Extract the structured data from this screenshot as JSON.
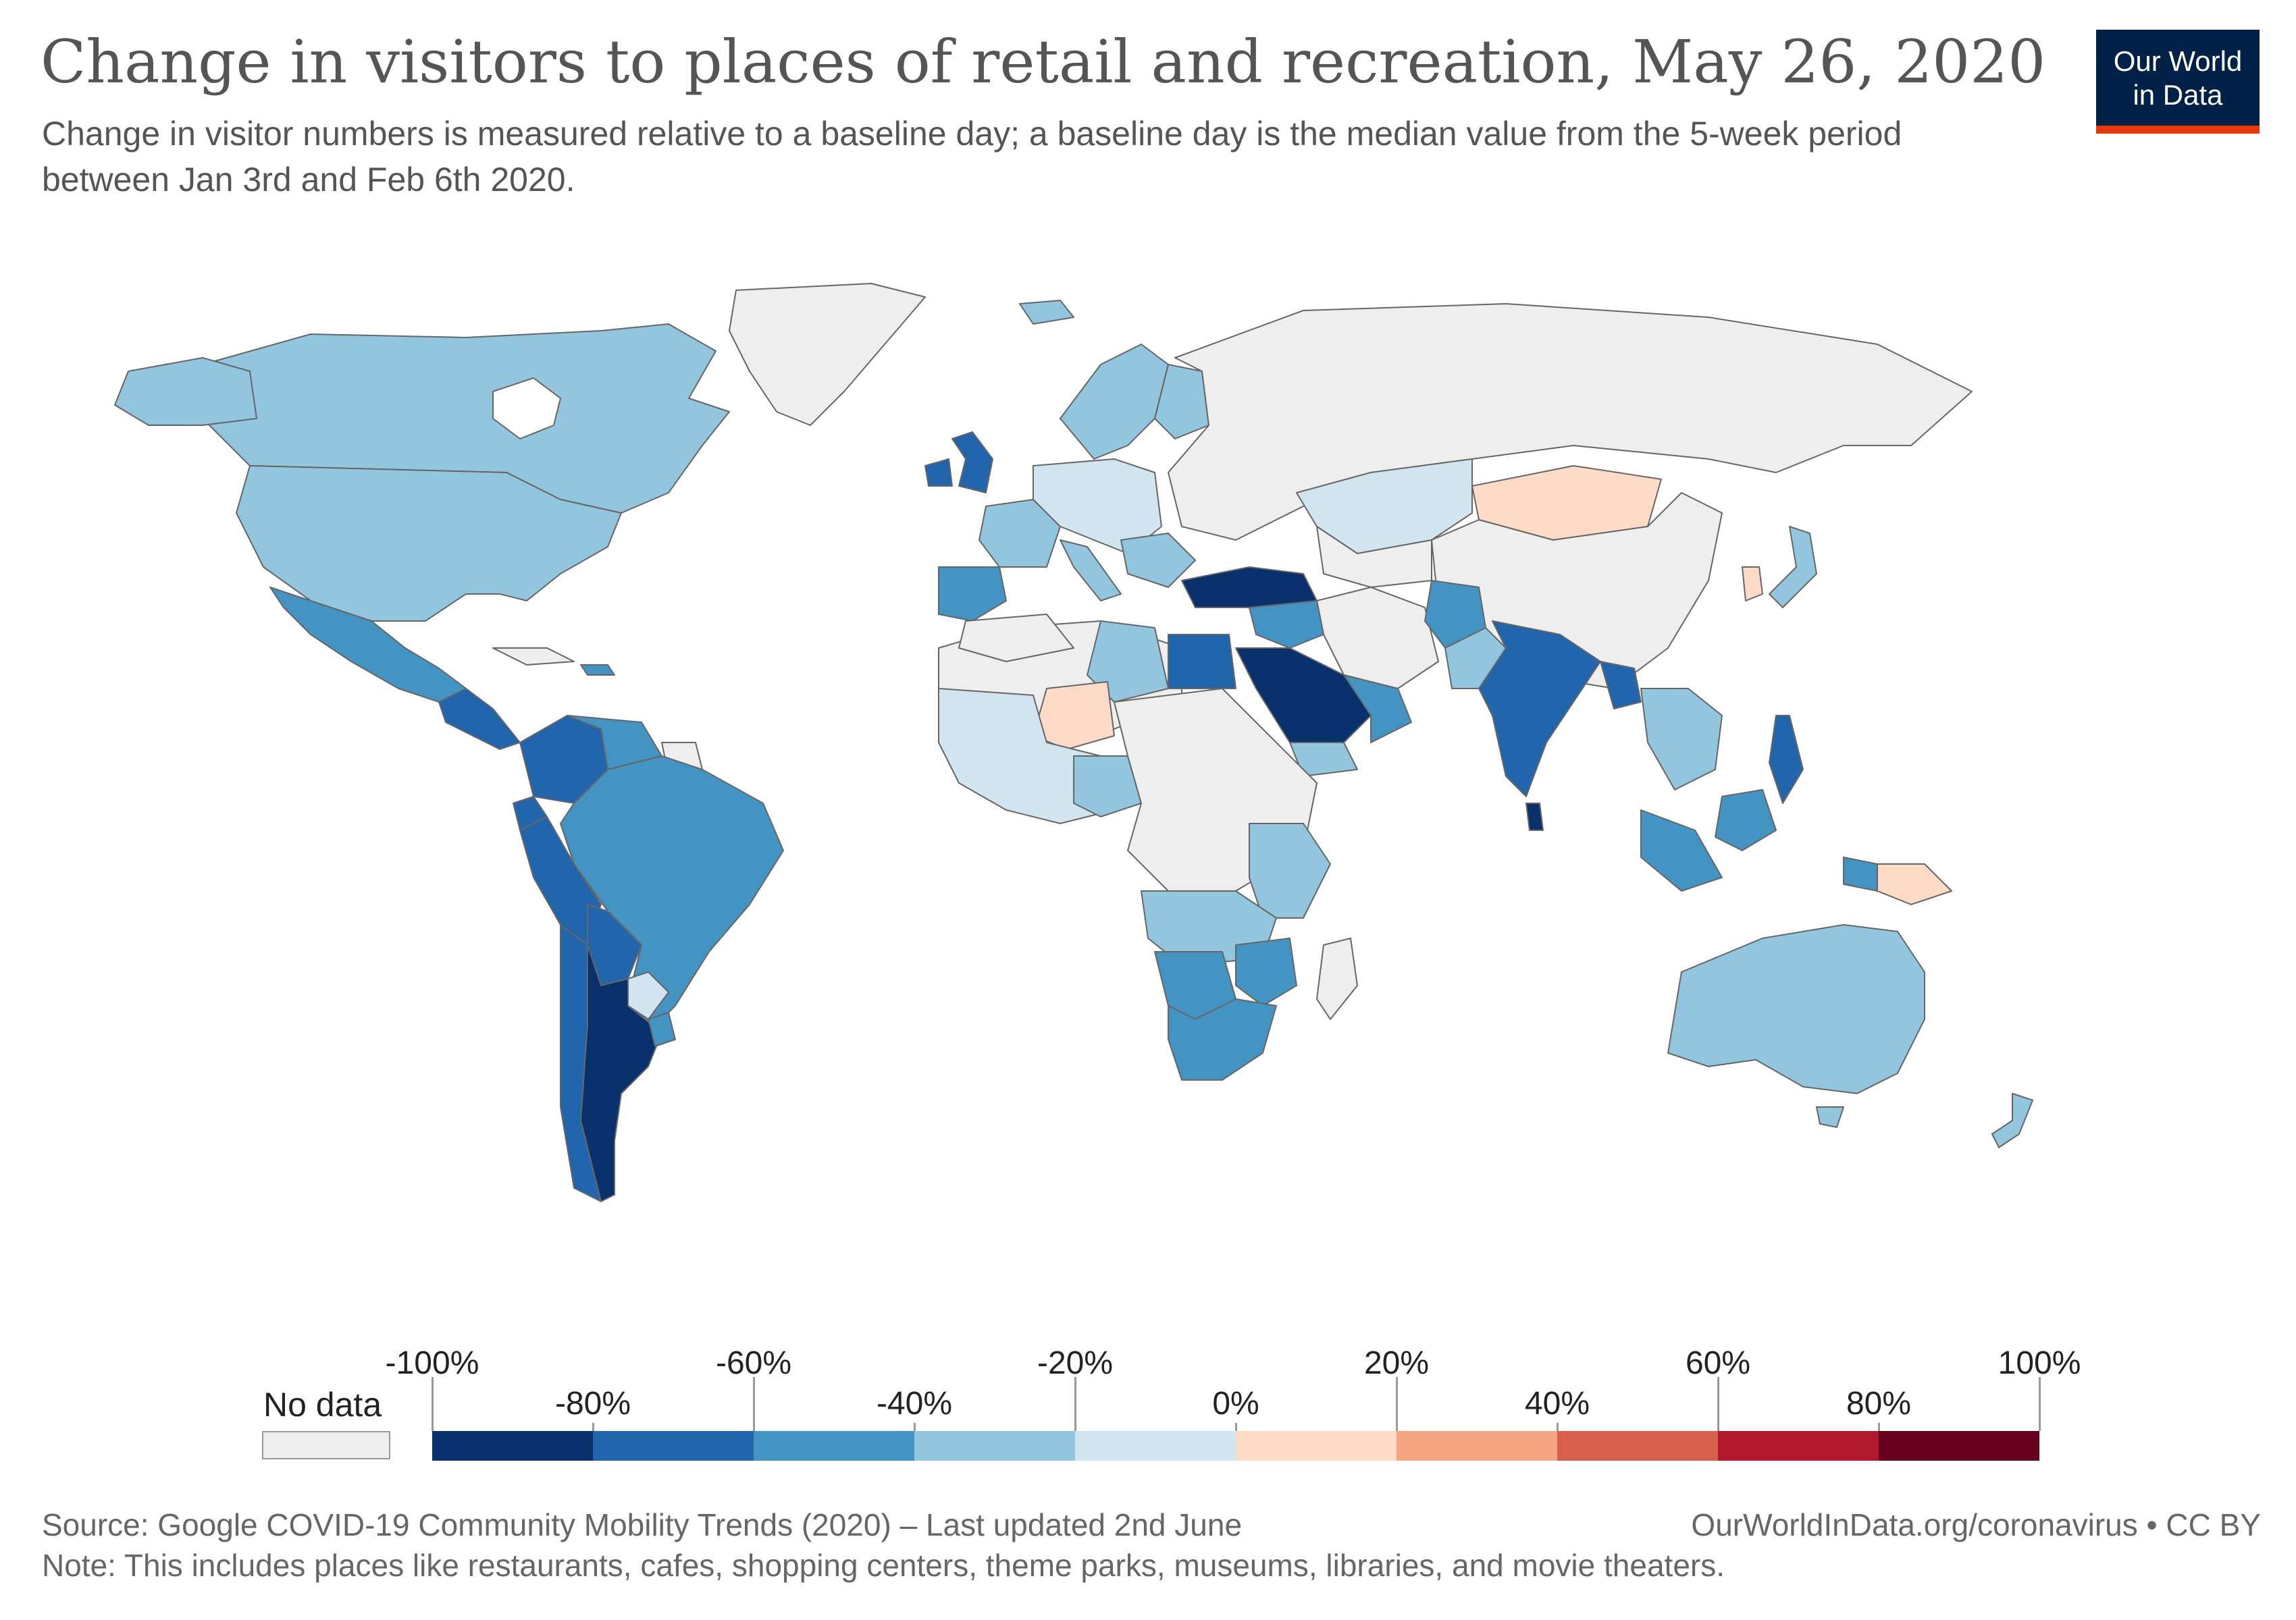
{
  "header": {
    "title": "Change in visitors to places of retail and recreation, May 26, 2020",
    "subtitle": "Change in visitor numbers is measured relative to a baseline day; a baseline day is the median value from the 5-week period between Jan 3rd and Feb 6th 2020."
  },
  "logo": {
    "line1": "Our World",
    "line2": "in Data"
  },
  "legend": {
    "no_data_label": "No data",
    "no_data_color": "#eeeeee",
    "bins": [
      {
        "from": -100,
        "to": -80,
        "color": "#08306b"
      },
      {
        "from": -80,
        "to": -60,
        "color": "#2166ac"
      },
      {
        "from": -60,
        "to": -40,
        "color": "#4393c3"
      },
      {
        "from": -40,
        "to": -20,
        "color": "#92c5de"
      },
      {
        "from": -20,
        "to": 0,
        "color": "#d1e5f0"
      },
      {
        "from": 0,
        "to": 20,
        "color": "#fddbc7"
      },
      {
        "from": 20,
        "to": 40,
        "color": "#f4a582"
      },
      {
        "from": 40,
        "to": 60,
        "color": "#d6604d"
      },
      {
        "from": 60,
        "to": 80,
        "color": "#b2182b"
      },
      {
        "from": 80,
        "to": 100,
        "color": "#67001f"
      }
    ],
    "upper_labels": [
      "-100%",
      "-60%",
      "-20%",
      "20%",
      "60%",
      "100%"
    ],
    "lower_labels": [
      "-80%",
      "-40%",
      "0%",
      "40%",
      "80%"
    ]
  },
  "footer": {
    "source": "Source: Google COVID-19 Community Mobility Trends (2020) – Last updated 2nd June",
    "note": "Note: This includes places like restaurants, cafes, shopping centers, theme parks, museums, libraries, and movie theaters.",
    "url": "OurWorldInData.org/coronavirus • CC BY"
  },
  "map_data": {
    "no_data_regions": [
      "Greenland",
      "Russia",
      "China",
      "North Africa",
      "Central Africa",
      "Madagascar",
      "Iran",
      "Central Asia"
    ],
    "countries": [
      {
        "name": "Canada",
        "bin": -40
      },
      {
        "name": "United States",
        "bin": -40
      },
      {
        "name": "Mexico",
        "bin": -60
      },
      {
        "name": "Brazil",
        "bin": -60
      },
      {
        "name": "Colombia",
        "bin": -80
      },
      {
        "name": "Peru",
        "bin": -80
      },
      {
        "name": "Bolivia",
        "bin": -80
      },
      {
        "name": "Argentina",
        "bin": -100
      },
      {
        "name": "Chile",
        "bin": -80
      },
      {
        "name": "Paraguay",
        "bin": -20
      },
      {
        "name": "United Kingdom",
        "bin": -80
      },
      {
        "name": "Spain",
        "bin": -60
      },
      {
        "name": "Turkey",
        "bin": -100
      },
      {
        "name": "Saudi Arabia",
        "bin": -100
      },
      {
        "name": "Egypt",
        "bin": -80
      },
      {
        "name": "India",
        "bin": -80
      },
      {
        "name": "Sri Lanka",
        "bin": -100
      },
      {
        "name": "Afghanistan",
        "bin": -60
      },
      {
        "name": "Mongolia",
        "bin": 0
      },
      {
        "name": "South Korea",
        "bin": 0
      },
      {
        "name": "Japan",
        "bin": -40
      },
      {
        "name": "Australia",
        "bin": -40
      },
      {
        "name": "New Zealand",
        "bin": -40
      },
      {
        "name": "Papua New Guinea",
        "bin": 0
      },
      {
        "name": "Niger",
        "bin": 0
      },
      {
        "name": "South Africa",
        "bin": -60
      },
      {
        "name": "Indonesia",
        "bin": -60
      },
      {
        "name": "Philippines",
        "bin": -80
      }
    ]
  }
}
